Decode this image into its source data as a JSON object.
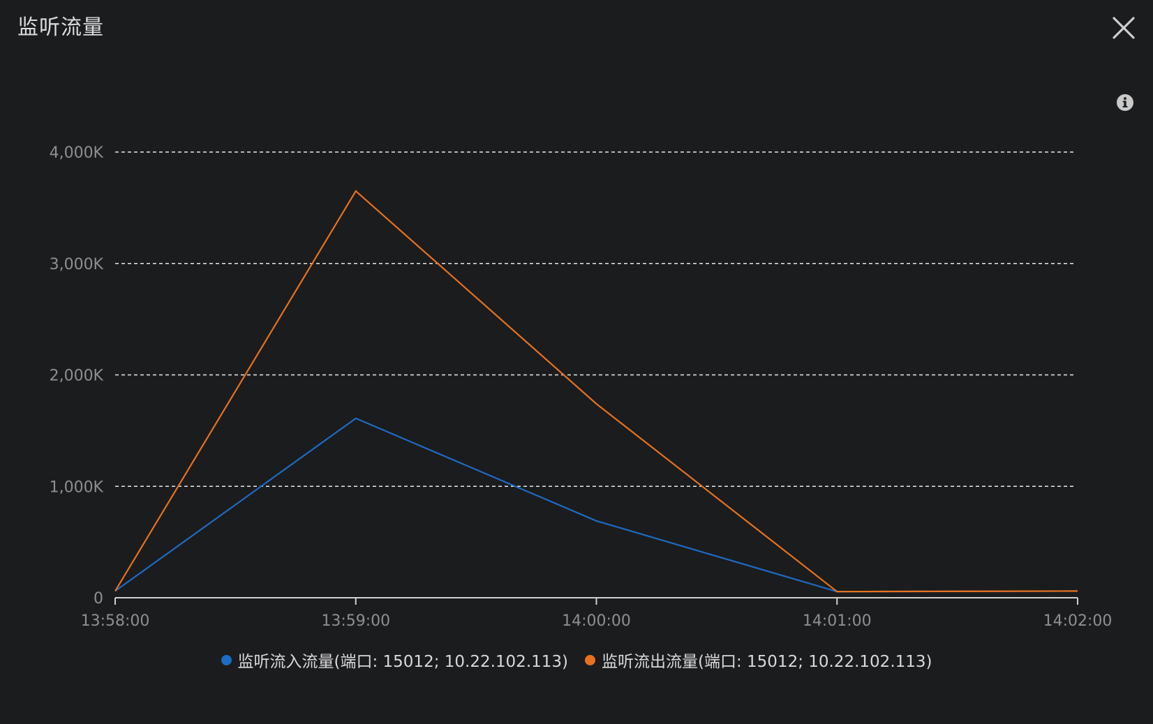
{
  "dialog": {
    "title": "监听流量",
    "close_icon": "close-icon",
    "info_icon": "info-icon"
  },
  "colors": {
    "background": "#1b1c1e",
    "inbound": "#1c6bc4",
    "outbound": "#e8711d",
    "grid": "#e8e8e8",
    "axis": "#d0d0d0",
    "tick_text": "#8f8f8f"
  },
  "chart_data": {
    "type": "line",
    "x": [
      "13:58:00",
      "13:59:00",
      "14:00:00",
      "14:01:00",
      "14:02:00"
    ],
    "yticks": [
      "0",
      "1,000K",
      "2,000K",
      "3,000K",
      "4,000K"
    ],
    "ylim": [
      0,
      4000
    ],
    "yunit": "K",
    "grid": true,
    "grid_style": "dashed",
    "legend_position": "bottom",
    "series": [
      {
        "name": "监听流入流量(端口: 15012; 10.22.102.113)",
        "color": "#1c6bc4",
        "values": [
          60,
          1610,
          690,
          55,
          60
        ]
      },
      {
        "name": "监听流出流量(端口: 15012; 10.22.102.113)",
        "color": "#e8711d",
        "values": [
          60,
          3650,
          1740,
          55,
          60
        ]
      }
    ]
  }
}
